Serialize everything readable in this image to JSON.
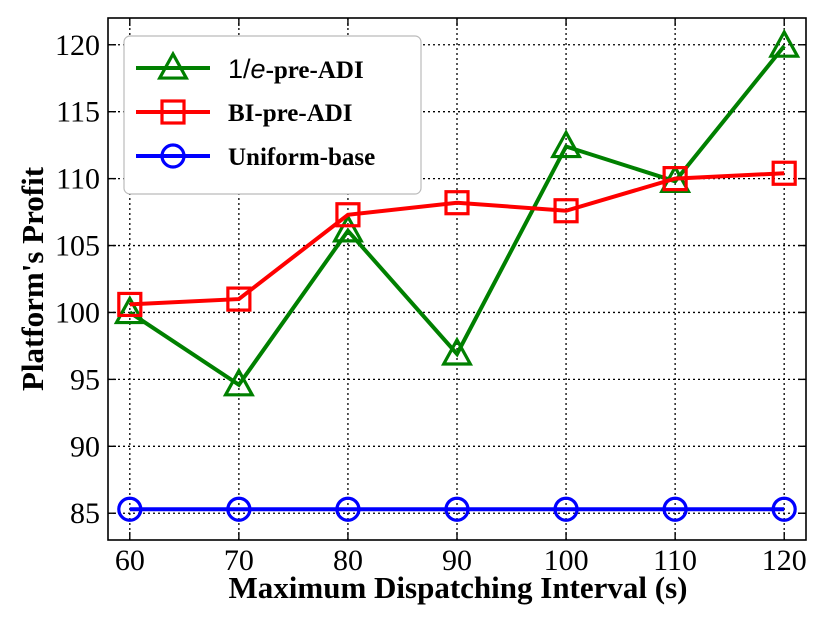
{
  "chart_data": {
    "type": "line",
    "title": "",
    "xlabel": "Maximum Dispatching Interval (s)",
    "ylabel": "Platform's Profit",
    "x": [
      60,
      70,
      80,
      90,
      100,
      110,
      120
    ],
    "xlim": [
      58,
      122
    ],
    "ylim": [
      83,
      122
    ],
    "xticks": [
      60,
      70,
      80,
      90,
      100,
      110,
      120
    ],
    "yticks": [
      85,
      90,
      95,
      100,
      105,
      110,
      115,
      120
    ],
    "grid": true,
    "legend_position": "top-left",
    "series": [
      {
        "name": "1/e-pre-ADI",
        "name_prefix": "1/",
        "name_italic": "e",
        "name_suffix": "-pre-ADI",
        "color": "#008000",
        "marker": "triangle",
        "values": [
          100.0,
          94.6,
          106.1,
          96.9,
          112.4,
          109.8,
          119.9
        ]
      },
      {
        "name": "BI-pre-ADI",
        "color": "#ff0000",
        "marker": "square",
        "values": [
          100.6,
          101.0,
          107.3,
          108.2,
          107.6,
          110.0,
          110.4
        ]
      },
      {
        "name": "Uniform-base",
        "color": "#0000ff",
        "marker": "circle",
        "values": [
          85.3,
          85.3,
          85.3,
          85.3,
          85.3,
          85.3,
          85.3
        ]
      }
    ]
  }
}
